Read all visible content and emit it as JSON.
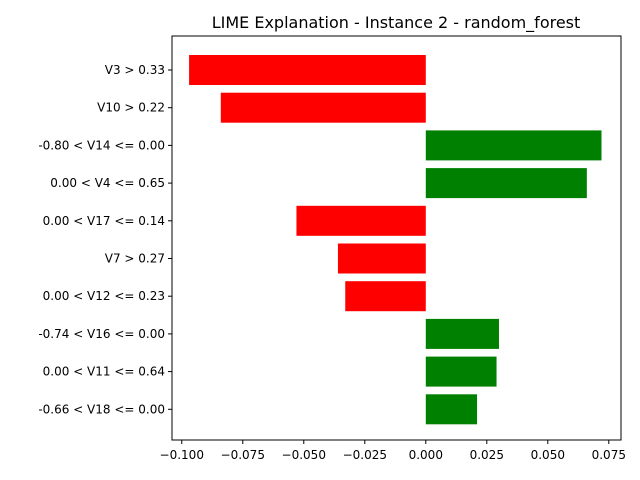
{
  "chart_data": {
    "type": "bar",
    "orientation": "horizontal",
    "title": "LIME Explanation - Instance 2 - random_forest",
    "xlabel": "",
    "ylabel": "",
    "xlim": [
      -0.104,
      0.08
    ],
    "xticks": [
      -0.1,
      -0.075,
      -0.05,
      -0.025,
      0.0,
      0.025,
      0.05,
      0.075
    ],
    "xtick_labels": [
      "−0.100",
      "−0.075",
      "−0.050",
      "−0.025",
      "0.000",
      "0.025",
      "0.050",
      "0.075"
    ],
    "grid": false,
    "legend": "none",
    "colors": {
      "positive": "#008000",
      "negative": "#ff0000"
    },
    "categories": [
      "V3 > 0.33",
      "V10 > 0.22",
      "-0.80 < V14 <= 0.00",
      "0.00 < V4 <= 0.65",
      "0.00 < V17 <= 0.14",
      "V7 > 0.27",
      "0.00 < V12 <= 0.23",
      "-0.74 < V16 <= 0.00",
      "0.00 < V11 <= 0.64",
      "-0.66 < V18 <= 0.00"
    ],
    "values": [
      -0.097,
      -0.084,
      0.072,
      0.066,
      -0.053,
      -0.036,
      -0.033,
      0.03,
      0.029,
      0.021
    ]
  }
}
